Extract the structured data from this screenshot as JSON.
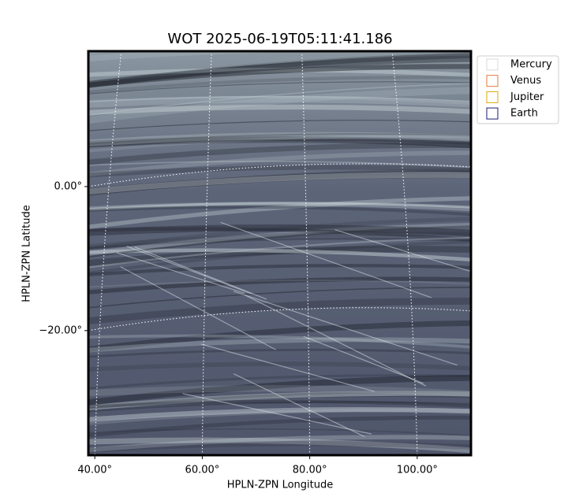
{
  "chart_data": {
    "type": "image",
    "title": "WOT 2025-06-19T05:11:41.186",
    "xlabel": "HPLN-ZPN Longitude",
    "ylabel": "HPLN-ZPN Latitude",
    "xlim": [
      38.8,
      110
    ],
    "ylim": [
      -37.3,
      18.8
    ],
    "xticks": [
      {
        "value": 40,
        "label": "40.00°"
      },
      {
        "value": 60,
        "label": "60.00°"
      },
      {
        "value": 80,
        "label": "80.00°"
      },
      {
        "value": 100,
        "label": "100.00°"
      }
    ],
    "yticks": [
      {
        "value": 0,
        "label": "0.00°"
      },
      {
        "value": -20,
        "label": "−20.00°"
      }
    ],
    "grid": true,
    "legend": "outside upper right",
    "series": [
      {
        "name": "Mercury",
        "color": "#d9d9d9"
      },
      {
        "name": "Venus",
        "color": "#e07b3a"
      },
      {
        "name": "Jupiter",
        "color": "#e0a800"
      },
      {
        "name": "Earth",
        "color": "#1a1a78"
      }
    ]
  }
}
